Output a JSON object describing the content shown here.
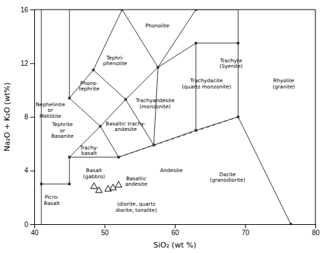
{
  "chart_data": {
    "type": "scatter",
    "xlabel": "SiO₂ (wt %)",
    "ylabel": "Na₂O + K₂O (wt%)",
    "xlim": [
      40,
      80
    ],
    "ylim": [
      0,
      16
    ],
    "xticks": [
      40,
      50,
      60,
      70,
      80
    ],
    "yticks": [
      0,
      4,
      8,
      12,
      16
    ],
    "grid": false,
    "x": [
      48.5,
      49.2,
      50.5,
      51.2,
      52.0
    ],
    "values": [
      2.8,
      2.5,
      2.6,
      2.7,
      2.9
    ],
    "marker": "triangle",
    "color": "black",
    "lines": [
      {
        "x": [
          41,
          41
        ],
        "y": [
          0,
          3
        ],
        "line_style": "solid"
      },
      {
        "x": [
          41,
          45
        ],
        "y": [
          3,
          3
        ],
        "line_style": "solid"
      },
      {
        "x": [
          45,
          45
        ],
        "y": [
          3,
          5
        ],
        "line_style": "solid"
      },
      {
        "x": [
          45,
          52
        ],
        "y": [
          5,
          5
        ],
        "line_style": "solid"
      },
      {
        "x": [
          52,
          52
        ],
        "y": [
          5,
          5
        ],
        "line_style": "solid"
      },
      {
        "x": [
          52,
          57
        ],
        "y": [
          5,
          5.9
        ],
        "line_style": "solid"
      },
      {
        "x": [
          57,
          63
        ],
        "y": [
          5.9,
          7
        ],
        "line_style": "solid"
      },
      {
        "x": [
          63,
          69
        ],
        "y": [
          7,
          8
        ],
        "line_style": "solid"
      },
      {
        "x": [
          69,
          76.5
        ],
        "y": [
          8,
          0
        ],
        "line_style": "solid"
      },
      {
        "x": [
          45,
          49.4
        ],
        "y": [
          5,
          7.3
        ],
        "line_style": "solid"
      },
      {
        "x": [
          49.4,
          52
        ],
        "y": [
          7.3,
          5
        ],
        "line_style": "solid"
      },
      {
        "x": [
          45,
          49.4
        ],
        "y": [
          9.4,
          7.3
        ],
        "line_style": "solid"
      },
      {
        "x": [
          49.4,
          53
        ],
        "y": [
          7.3,
          9.3
        ],
        "line_style": "solid"
      },
      {
        "x": [
          53,
          57
        ],
        "y": [
          9.3,
          5.9
        ],
        "line_style": "solid"
      },
      {
        "x": [
          57,
          57.6
        ],
        "y": [
          5.9,
          11.7
        ],
        "line_style": "solid"
      },
      {
        "x": [
          57.6,
          53
        ],
        "y": [
          11.7,
          9.3
        ],
        "line_style": "solid"
      },
      {
        "x": [
          45,
          48.4
        ],
        "y": [
          9.4,
          11.5
        ],
        "line_style": "solid"
      },
      {
        "x": [
          48.4,
          53
        ],
        "y": [
          11.5,
          9.3
        ],
        "line_style": "solid"
      },
      {
        "x": [
          48.4,
          52.5
        ],
        "y": [
          11.5,
          16
        ],
        "line_style": "solid"
      },
      {
        "x": [
          52.5,
          57.6
        ],
        "y": [
          16,
          11.7
        ],
        "line_style": "solid"
      },
      {
        "x": [
          41,
          41
        ],
        "y": [
          3,
          16
        ],
        "line_style": "solid"
      },
      {
        "x": [
          45,
          45
        ],
        "y": [
          9.4,
          16
        ],
        "line_style": "solid"
      },
      {
        "x": [
          45,
          52.5
        ],
        "y": [
          16,
          16
        ],
        "line_style": "solid"
      },
      {
        "x": [
          57.6,
          63
        ],
        "y": [
          11.7,
          13.5
        ],
        "line_style": "solid"
      },
      {
        "x": [
          63,
          63
        ],
        "y": [
          13.5,
          7
        ],
        "line_style": "solid"
      },
      {
        "x": [
          63,
          69
        ],
        "y": [
          13.5,
          13.5
        ],
        "line_style": "solid"
      },
      {
        "x": [
          69,
          69
        ],
        "y": [
          13.5,
          8
        ],
        "line_style": "solid"
      },
      {
        "x": [
          63,
          69
        ],
        "y": [
          16,
          16
        ],
        "line_style": "solid"
      },
      {
        "x": [
          57.6,
          63
        ],
        "y": [
          11.7,
          16
        ],
        "line_style": "solid"
      },
      {
        "x": [
          69,
          69
        ],
        "y": [
          16,
          13.5
        ],
        "line_style": "solid"
      },
      {
        "x": [
          52,
          69
        ],
        "y": [
          5,
          8
        ],
        "line_style": "dashed"
      }
    ],
    "nodes": {
      "x": [
        41,
        45,
        45,
        45,
        48.4,
        49.4,
        52,
        52.5,
        53,
        57,
        57.6,
        63,
        63,
        63,
        69,
        69,
        76.5
      ],
      "y": [
        3,
        3,
        5,
        9.4,
        11.5,
        7.3,
        5,
        16,
        9.3,
        5.9,
        11.7,
        7,
        13.5,
        16,
        8,
        13.5,
        0
      ],
      "marker": "square"
    },
    "annotations": [
      {
        "text": "Phonolite",
        "x": 57.5,
        "y": 14.8
      },
      {
        "text": "Tephri-\nphenolite",
        "x": 51.5,
        "y": 12.2
      },
      {
        "text": "Phono-\ntephrite",
        "x": 47.8,
        "y": 10.3
      },
      {
        "text": "Trachyandesite\n(monzonite)",
        "x": 57.2,
        "y": 9.0
      },
      {
        "text": "Basaltic trachy-\nandesite",
        "x": 53.0,
        "y": 7.3
      },
      {
        "text": "Trachy-\nbasalt",
        "x": 47.8,
        "y": 5.5
      },
      {
        "text": "Tephrite\nor\nBasanite",
        "x": 44.0,
        "y": 7.0
      },
      {
        "text": "Nephelinite\nor\nMelilitite",
        "x": 40.2,
        "y": 8.5
      },
      {
        "text": "Basalt\n(gabbro)",
        "x": 48.5,
        "y": 3.8
      },
      {
        "text": "Picro-\nBasalt",
        "x": 42.5,
        "y": 1.8
      },
      {
        "text": "Basaltic\nandesite",
        "x": 54.5,
        "y": 3.2
      },
      {
        "text": "Andesite",
        "x": 59.5,
        "y": 4.0
      },
      {
        "text": "Dacite\n(granodiorite)",
        "x": 67.5,
        "y": 3.5
      },
      {
        "text": "Rhyolite\n(granite)",
        "x": 75.5,
        "y": 10.5
      },
      {
        "text": "Trachyte\n(Syenite)",
        "x": 68.0,
        "y": 12.0
      },
      {
        "text": "Trachydacite\n(quartz monzonite)",
        "x": 64.5,
        "y": 10.5
      },
      {
        "text": "(diorite, quartz\ndiorite, tonalite)",
        "x": 54.5,
        "y": 1.3
      }
    ]
  }
}
